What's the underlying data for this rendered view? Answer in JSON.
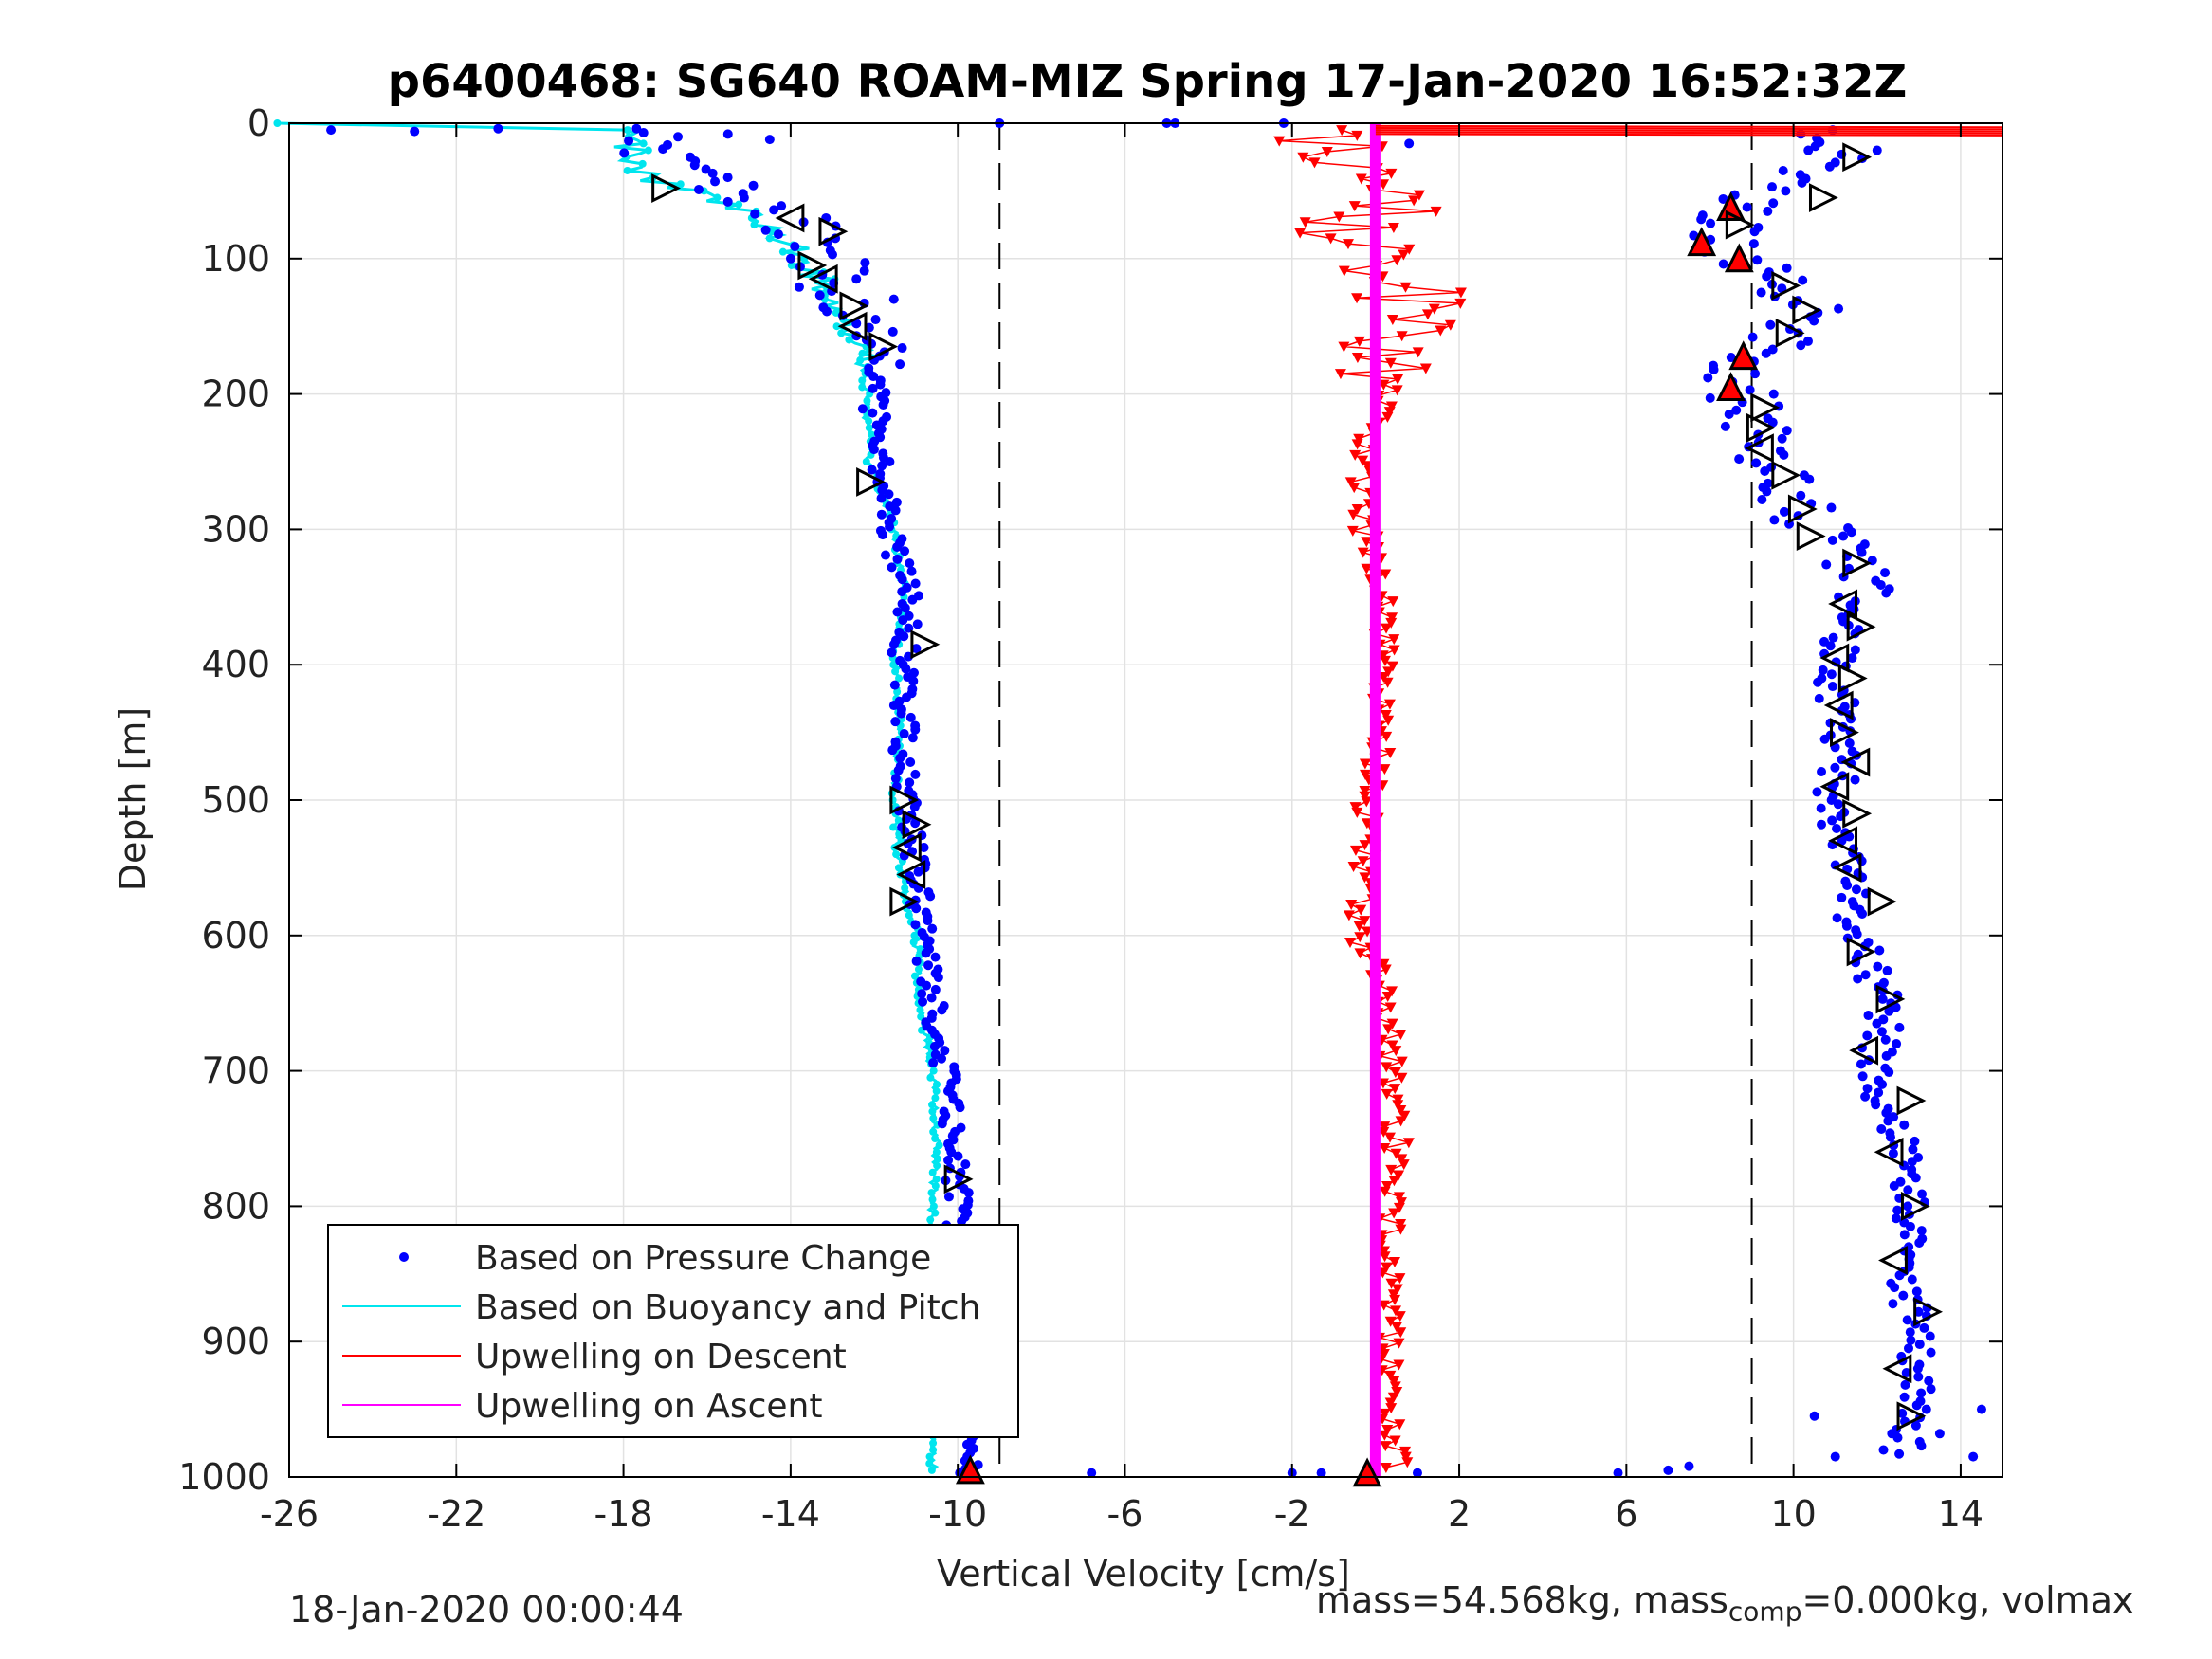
{
  "chart_data": {
    "type": "scatter",
    "title": "p6400468: SG640 ROAM-MIZ Spring 17-Jan-2020 16:52:32Z",
    "xlabel": "Vertical Velocity [cm/s]",
    "ylabel": "Depth [m]",
    "xlim": [
      -26,
      15
    ],
    "ylim": [
      0,
      1000
    ],
    "y_reversed": true,
    "xticks": [
      -26,
      -22,
      -18,
      -14,
      -10,
      -6,
      -2,
      2,
      6,
      10,
      14
    ],
    "yticks": [
      0,
      100,
      200,
      300,
      400,
      500,
      600,
      700,
      800,
      900,
      1000
    ],
    "grid": true,
    "legend_position": "bottom-left",
    "reference_lines_x": [
      -9,
      9
    ],
    "colors": {
      "pressure": "#0000ff",
      "buoyancy": "#00e5ee",
      "upwelling_descent": "#ff0000",
      "upwelling_ascent": "#ff00ff"
    },
    "legend": [
      {
        "label": "Based on Pressure Change",
        "marker": "dot",
        "color": "#0000ff"
      },
      {
        "label": "Based on Buoyancy and Pitch",
        "marker": "line",
        "color": "#00e5ee"
      },
      {
        "label": "Upwelling on Descent",
        "marker": "line",
        "color": "#ff0000"
      },
      {
        "label": "Upwelling on Ascent",
        "marker": "line",
        "color": "#ff00ff"
      }
    ],
    "series": [
      {
        "name": "Based on Pressure Change",
        "profile": "descent",
        "depth": [
          5,
          20,
          40,
          60,
          80,
          100,
          120,
          140,
          160,
          200,
          250,
          300,
          350,
          400,
          450,
          500,
          550,
          600,
          650,
          700,
          750,
          800,
          850,
          900,
          950,
          995
        ],
        "velocity": [
          -17.5,
          -17.2,
          -16.5,
          -14.5,
          -13.5,
          -13.0,
          -12.8,
          -12.4,
          -12.1,
          -12.0,
          -11.9,
          -11.6,
          -11.2,
          -11.3,
          -11.3,
          -11.2,
          -11.0,
          -10.8,
          -10.6,
          -10.3,
          -10.1,
          -10.0,
          -10.0,
          -10.0,
          -9.9,
          -9.8
        ]
      },
      {
        "name": "Based on Buoyancy and Pitch",
        "profile": "descent",
        "depth": [
          0,
          5,
          20,
          40,
          60,
          80,
          100,
          120,
          140,
          160,
          200,
          250,
          300,
          350,
          400,
          450,
          500,
          550,
          600,
          650,
          700,
          750,
          800,
          850,
          900,
          950,
          995
        ],
        "velocity": [
          -26,
          -18,
          -17.8,
          -17.5,
          -15.5,
          -14.2,
          -13.8,
          -13.2,
          -12.8,
          -12.3,
          -12.2,
          -12.1,
          -11.5,
          -11.3,
          -11.5,
          -11.4,
          -11.5,
          -11.4,
          -11.0,
          -10.9,
          -10.6,
          -10.5,
          -10.6,
          -10.6,
          -10.6,
          -10.6,
          -10.6
        ]
      },
      {
        "name": "Based on Pressure Change",
        "profile": "ascent",
        "depth": [
          5,
          20,
          40,
          60,
          80,
          100,
          120,
          140,
          160,
          180,
          200,
          220,
          250,
          280,
          300,
          330,
          360,
          400,
          450,
          500,
          550,
          600,
          650,
          700,
          750,
          800,
          850,
          900,
          950,
          980
        ],
        "velocity": [
          11.0,
          11.2,
          10.0,
          8.6,
          8.2,
          8.6,
          9.8,
          10.5,
          9.8,
          8.8,
          8.8,
          9.2,
          9.6,
          10.0,
          10.6,
          11.5,
          11.3,
          11.0,
          11.1,
          11.0,
          11.3,
          11.5,
          12.2,
          11.9,
          12.5,
          12.8,
          12.5,
          13.0,
          12.8,
          12.6
        ]
      },
      {
        "name": "Upwelling on Descent",
        "depth": [
          5,
          20,
          40,
          60,
          80,
          100,
          120,
          150,
          200,
          250,
          300,
          350,
          400,
          450,
          500,
          550,
          600,
          650,
          700,
          750,
          800,
          850,
          900,
          950,
          995
        ],
        "velocity": [
          -1.5,
          -0.8,
          -1.0,
          0.5,
          -0.8,
          0.2,
          0.8,
          0.5,
          0.2,
          -0.3,
          -0.3,
          0.3,
          0.2,
          0.2,
          -0.2,
          -0.3,
          -0.4,
          0.3,
          0.4,
          0.5,
          0.4,
          0.3,
          0.3,
          0.4,
          0.5
        ]
      },
      {
        "name": "Upwelling on Ascent",
        "depth": [
          0,
          1000
        ],
        "velocity": [
          0.0,
          0.0
        ]
      }
    ],
    "footer_left": "18-Jan-2020 00:00:44",
    "footer_right_prefix": "mass=54.568kg, mass",
    "footer_right_sub": "comp",
    "footer_right_suffix": "=0.000kg, volmax"
  }
}
